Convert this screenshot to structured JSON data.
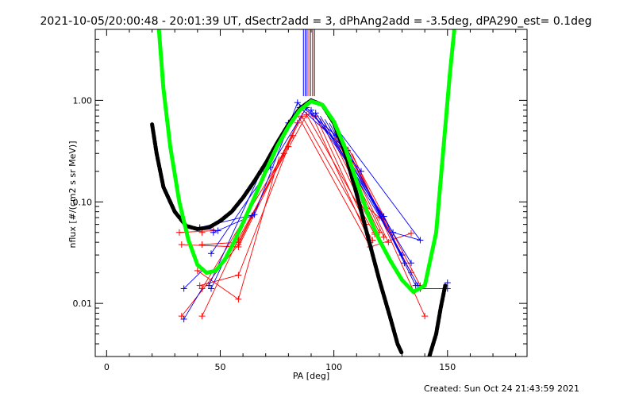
{
  "chart_data": {
    "type": "scatter",
    "title": "2021-10-05/20:00:48 - 20:01:39 UT, dSectr2add = 3, dPhAng2add = -3.5deg, dPA290_est=  0.1deg",
    "xlabel": "PA [deg]",
    "ylabel": "nflux [#/(cm2 s sr MeV)]",
    "footer": "Created: Sun Oct 24 21:43:59 2021",
    "xlim": [
      -5,
      185
    ],
    "ylim": [
      0.003,
      5.0
    ],
    "yscale": "log",
    "x_ticks": [
      0,
      50,
      100,
      150
    ],
    "x_tick_labels": [
      "0",
      "50",
      "100",
      "150"
    ],
    "y_ticks": [
      0.01,
      0.1,
      1.0
    ],
    "y_tick_labels": [
      "0.01",
      "0.10",
      "1.00"
    ],
    "grid": false,
    "colors": {
      "red": "#ff0000",
      "blue": "#0000ff",
      "green": "#00ff00",
      "black": "#000000"
    },
    "vertical_lines": {
      "y_range": [
        1.1,
        5.0
      ],
      "lines": [
        {
          "x": 86.6,
          "color": "#0000ff"
        },
        {
          "x": 87.4,
          "color": "#0000ff"
        },
        {
          "x": 88.2,
          "color": "#0000ff"
        },
        {
          "x": 89.0,
          "color": "#ff0000"
        },
        {
          "x": 89.8,
          "color": "#ff0000"
        },
        {
          "x": 90.6,
          "color": "#ff0000"
        },
        {
          "x": 91.4,
          "color": "#000000"
        }
      ]
    },
    "curves": [
      {
        "color": "#000000",
        "points": [
          [
            20,
            0.58
          ],
          [
            22,
            0.3
          ],
          [
            25,
            0.14
          ],
          [
            30,
            0.08
          ],
          [
            35,
            0.058
          ],
          [
            40,
            0.054
          ],
          [
            45,
            0.056
          ],
          [
            50,
            0.065
          ],
          [
            55,
            0.08
          ],
          [
            60,
            0.11
          ],
          [
            65,
            0.16
          ],
          [
            70,
            0.24
          ],
          [
            75,
            0.38
          ],
          [
            80,
            0.58
          ],
          [
            85,
            0.83
          ],
          [
            90,
            1.0
          ],
          [
            95,
            0.9
          ],
          [
            100,
            0.6
          ],
          [
            105,
            0.3
          ],
          [
            110,
            0.12
          ],
          [
            115,
            0.045
          ],
          [
            120,
            0.017
          ],
          [
            125,
            0.007
          ],
          [
            128,
            0.004
          ],
          [
            130,
            0.0032
          ]
        ]
      },
      {
        "color": "#000000",
        "points": [
          [
            142,
            0.003
          ],
          [
            145,
            0.005
          ],
          [
            147,
            0.009
          ],
          [
            149,
            0.015
          ]
        ]
      },
      {
        "color": "#00ff00",
        "points": [
          [
            23,
            5.0
          ],
          [
            25,
            1.3
          ],
          [
            28,
            0.35
          ],
          [
            32,
            0.1
          ],
          [
            36,
            0.042
          ],
          [
            40,
            0.024
          ],
          [
            44,
            0.02
          ],
          [
            48,
            0.021
          ],
          [
            52,
            0.027
          ],
          [
            56,
            0.04
          ],
          [
            60,
            0.062
          ],
          [
            65,
            0.11
          ],
          [
            70,
            0.2
          ],
          [
            75,
            0.35
          ],
          [
            80,
            0.55
          ],
          [
            85,
            0.8
          ],
          [
            90,
            0.98
          ],
          [
            95,
            0.9
          ],
          [
            100,
            0.62
          ],
          [
            105,
            0.34
          ],
          [
            110,
            0.16
          ],
          [
            115,
            0.075
          ],
          [
            120,
            0.042
          ],
          [
            125,
            0.026
          ],
          [
            130,
            0.017
          ],
          [
            135,
            0.013
          ],
          [
            140,
            0.015
          ],
          [
            145,
            0.05
          ],
          [
            148,
            0.3
          ],
          [
            151,
            1.8
          ],
          [
            153,
            5.0
          ]
        ]
      }
    ],
    "series": [
      {
        "color": "#ff0000",
        "points": [
          [
            32,
            0.05
          ],
          [
            42,
            0.05
          ],
          [
            47,
            0.052
          ],
          [
            62,
            0.075
          ],
          [
            72,
            0.2
          ],
          [
            78,
            0.4
          ],
          [
            84,
            0.72
          ],
          [
            88,
            0.78
          ],
          [
            92,
            0.75
          ],
          [
            97,
            0.65
          ],
          [
            104,
            0.46
          ],
          [
            110,
            0.26
          ],
          [
            114,
            0.11
          ],
          [
            118,
            0.062
          ],
          [
            124,
            0.034
          ],
          [
            134,
            0.049
          ],
          [
            138,
            0.02
          ]
        ],
        "segments": [
          [
            32,
            0.05,
            47,
            0.052
          ],
          [
            32,
            0.038,
            58,
            0.036
          ],
          [
            33,
            0.0075,
            58,
            0.038
          ],
          [
            42,
            0.038,
            58,
            0.04
          ],
          [
            42,
            0.0075,
            58,
            0.043
          ],
          [
            41,
            0.015,
            58,
            0.019
          ],
          [
            40,
            0.021,
            58,
            0.011
          ],
          [
            42,
            0.014,
            78,
            0.3
          ],
          [
            58,
            0.036,
            82,
            0.45
          ],
          [
            58,
            0.038,
            84,
            0.6
          ],
          [
            58,
            0.04,
            86,
            0.7
          ],
          [
            58,
            0.043,
            88,
            0.72
          ],
          [
            58,
            0.019,
            80,
            0.35
          ],
          [
            58,
            0.011,
            76,
            0.28
          ],
          [
            84,
            0.72,
            116,
            0.036
          ],
          [
            86,
            0.7,
            117,
            0.042
          ],
          [
            88,
            0.72,
            118,
            0.048
          ],
          [
            90,
            0.74,
            116,
            0.04
          ],
          [
            92,
            0.7,
            114,
            0.06
          ],
          [
            94,
            0.66,
            118,
            0.05
          ],
          [
            96,
            0.6,
            120,
            0.05
          ],
          [
            98,
            0.55,
            122,
            0.045
          ],
          [
            100,
            0.5,
            124,
            0.04
          ],
          [
            102,
            0.45,
            130,
            0.03
          ],
          [
            104,
            0.4,
            134,
            0.02
          ],
          [
            106,
            0.35,
            138,
            0.015
          ],
          [
            108,
            0.3,
            140,
            0.0075
          ],
          [
            112,
            0.1,
            120,
            0.07
          ],
          [
            116,
            0.036,
            134,
            0.049
          ]
        ],
        "markers": [
          [
            32,
            0.05
          ],
          [
            33,
            0.038
          ],
          [
            33,
            0.0075
          ],
          [
            40,
            0.021
          ],
          [
            41,
            0.015
          ],
          [
            42,
            0.014
          ],
          [
            42,
            0.05
          ],
          [
            42,
            0.038
          ],
          [
            42,
            0.0075
          ],
          [
            47,
            0.052
          ],
          [
            58,
            0.036
          ],
          [
            58,
            0.038
          ],
          [
            58,
            0.04
          ],
          [
            58,
            0.043
          ],
          [
            58,
            0.019
          ],
          [
            58,
            0.011
          ],
          [
            78,
            0.3
          ],
          [
            80,
            0.35
          ],
          [
            82,
            0.45
          ],
          [
            84,
            0.6
          ],
          [
            86,
            0.7
          ],
          [
            88,
            0.72
          ],
          [
            90,
            0.74
          ],
          [
            92,
            0.7
          ],
          [
            114,
            0.06
          ],
          [
            116,
            0.036
          ],
          [
            116,
            0.04
          ],
          [
            117,
            0.042
          ],
          [
            118,
            0.048
          ],
          [
            118,
            0.05
          ],
          [
            120,
            0.05
          ],
          [
            120,
            0.07
          ],
          [
            122,
            0.045
          ],
          [
            124,
            0.04
          ],
          [
            130,
            0.03
          ],
          [
            134,
            0.049
          ],
          [
            134,
            0.02
          ],
          [
            138,
            0.015
          ],
          [
            140,
            0.0075
          ]
        ]
      },
      {
        "color": "#0000ff",
        "segments": [
          [
            34,
            0.014,
            42,
            0.021
          ],
          [
            34,
            0.007,
            42,
            0.014
          ],
          [
            41,
            0.056,
            49,
            0.052
          ],
          [
            41,
            0.056,
            65,
            0.075
          ],
          [
            47,
            0.05,
            64,
            0.073
          ],
          [
            46,
            0.031,
            72,
            0.22
          ],
          [
            45,
            0.015,
            68,
            0.2
          ],
          [
            46,
            0.014,
            80,
            0.6
          ],
          [
            65,
            0.075,
            84,
            0.95
          ],
          [
            72,
            0.22,
            88,
            0.85
          ],
          [
            84,
            0.95,
            101,
            0.45
          ],
          [
            85,
            0.85,
            106,
            0.32
          ],
          [
            88,
            0.85,
            112,
            0.2
          ],
          [
            90,
            0.8,
            122,
            0.072
          ],
          [
            92,
            0.75,
            126,
            0.05
          ],
          [
            94,
            0.7,
            130,
            0.03
          ],
          [
            96,
            0.65,
            134,
            0.025
          ],
          [
            98,
            0.6,
            137,
            0.015
          ],
          [
            100,
            0.58,
            138,
            0.042
          ],
          [
            104,
            0.4,
            136,
            0.015
          ],
          [
            122,
            0.072,
            131,
            0.025
          ],
          [
            126,
            0.05,
            138,
            0.042
          ],
          [
            138,
            0.014,
            150,
            0.014
          ]
        ],
        "markers": [
          [
            34,
            0.014
          ],
          [
            34,
            0.007
          ],
          [
            41,
            0.056
          ],
          [
            45,
            0.015
          ],
          [
            46,
            0.031
          ],
          [
            46,
            0.014
          ],
          [
            47,
            0.05
          ],
          [
            49,
            0.052
          ],
          [
            64,
            0.073
          ],
          [
            65,
            0.075
          ],
          [
            68,
            0.2
          ],
          [
            72,
            0.22
          ],
          [
            80,
            0.6
          ],
          [
            84,
            0.95
          ],
          [
            85,
            0.85
          ],
          [
            88,
            0.85
          ],
          [
            90,
            0.8
          ],
          [
            92,
            0.75
          ],
          [
            101,
            0.45
          ],
          [
            106,
            0.32
          ],
          [
            112,
            0.2
          ],
          [
            122,
            0.072
          ],
          [
            126,
            0.05
          ],
          [
            130,
            0.03
          ],
          [
            131,
            0.025
          ],
          [
            134,
            0.025
          ],
          [
            136,
            0.015
          ],
          [
            137,
            0.015
          ],
          [
            138,
            0.042
          ],
          [
            138,
            0.014
          ],
          [
            150,
            0.014
          ],
          [
            150,
            0.016
          ]
        ]
      }
    ]
  }
}
